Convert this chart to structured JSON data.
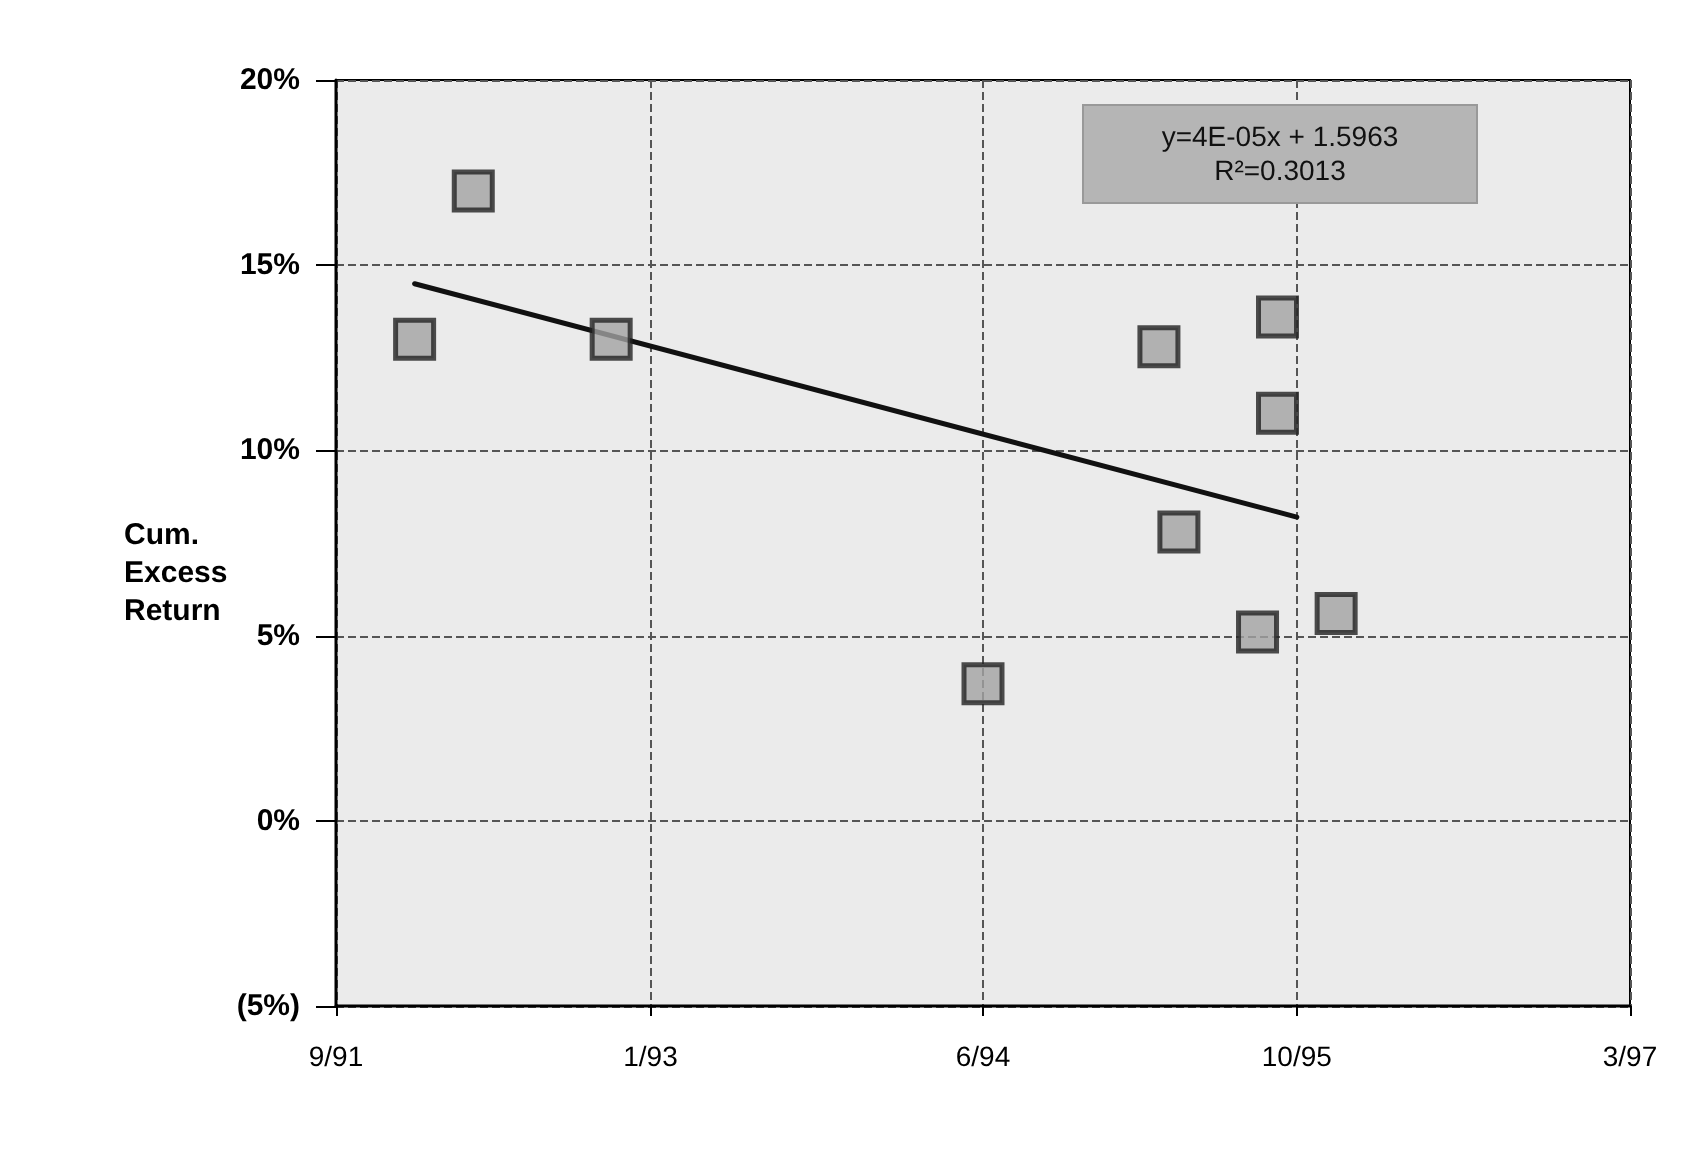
{
  "chart_data": {
    "type": "scatter",
    "ylabel": "Cum. Excess Return",
    "annotations": [
      "y=4E-05x + 1.5963",
      "R²=0.3013"
    ],
    "series": [
      {
        "color": "#a3a3a3",
        "marker": "square",
        "x": [
          "1992-01",
          "1992-04",
          "1992-11",
          "1994-06",
          "1995-03",
          "1995-04",
          "1995-08",
          "1995-09",
          "1995-09",
          "1995-12"
        ],
        "values": [
          13,
          17,
          13,
          3.7,
          12.8,
          7.8,
          5.1,
          13.6,
          11,
          5.6
        ]
      },
      {
        "type": "line",
        "color": "#111111",
        "marker": "none",
        "line_style": "solid",
        "x": [
          "1992-01",
          "1995-10"
        ],
        "values": [
          14.5,
          8.2
        ]
      }
    ],
    "xlim": [
      "1991-09",
      "1997-03"
    ],
    "xticks": [
      {
        "value": "1991-09",
        "label": "9/91"
      },
      {
        "value": "1993-01",
        "label": "1/93"
      },
      {
        "value": "1994-06",
        "label": "6/94"
      },
      {
        "value": "1995-10",
        "label": "10/95"
      },
      {
        "value": "1997-03",
        "label": "3/97"
      }
    ],
    "ylim": [
      -5,
      20
    ],
    "yticks": [
      {
        "value": -5,
        "label": "(5%)"
      },
      {
        "value": 0,
        "label": "0%"
      },
      {
        "value": 5,
        "label": "5%"
      },
      {
        "value": 10,
        "label": "10%"
      },
      {
        "value": 15,
        "label": "15%"
      },
      {
        "value": 20,
        "label": "20%"
      }
    ],
    "grid": true
  }
}
